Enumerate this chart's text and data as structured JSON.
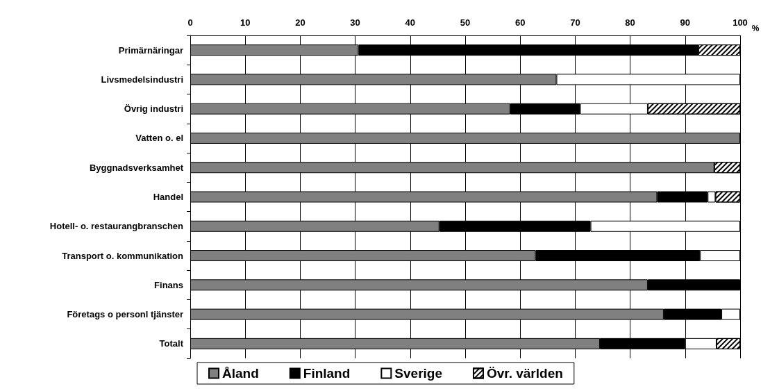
{
  "chart_data": {
    "type": "bar",
    "orientation": "horizontal",
    "stacked": true,
    "xlabel": "%",
    "categories": [
      "Primärnäringar",
      "Livsmedelsindustri",
      "Övrig industri",
      "Vatten o. el",
      "Byggnadsverksamhet",
      "Handel",
      "Hotell- o. restaurangbranschen",
      "Transport o. kommunikation",
      "Finans",
      "Företags o personl tjänster",
      "Totalt"
    ],
    "series": [
      {
        "name": "Åland",
        "color": "#808080",
        "values": [
          30.6,
          66.6,
          58.2,
          100,
          95.3,
          84.9,
          45.3,
          62.8,
          83.2,
          86.1,
          74.5
        ]
      },
      {
        "name": "Finland",
        "color": "#000000",
        "values": [
          61.8,
          0,
          12.7,
          0,
          0,
          9.2,
          27.5,
          29.9,
          16.8,
          10.5,
          15.5
        ]
      },
      {
        "name": "Sverige",
        "color": "#ffffff",
        "values": [
          0,
          33.4,
          12.3,
          0,
          0,
          1.4,
          27.2,
          7.3,
          0,
          3.4,
          5.7
        ]
      },
      {
        "name": "Övr. världen",
        "color": "#ffffff",
        "values": [
          7.6,
          0,
          16.8,
          0,
          4.7,
          4.5,
          0,
          0,
          0,
          0,
          4.3
        ]
      }
    ],
    "xlim": [
      0,
      100
    ],
    "xticks": [
      0,
      10,
      20,
      30,
      40,
      50,
      60,
      70,
      80,
      90,
      100
    ],
    "grid": "x",
    "legend": "bottom"
  }
}
